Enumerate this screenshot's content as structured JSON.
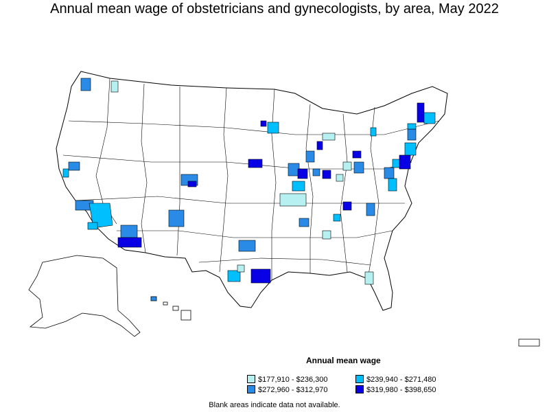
{
  "title": "Annual mean wage of obstetricians and gynecologists, by area, May 2022",
  "legend": {
    "title": "Annual mean wage",
    "items": [
      {
        "label": "$177,910 - $236,300",
        "color": "#b7f0f0"
      },
      {
        "label": "$239,940 - $271,480",
        "color": "#00bfff"
      },
      {
        "label": "$272,960 - $312,970",
        "color": "#2a8be6"
      },
      {
        "label": "$319,980 - $398,650",
        "color": "#0a00e6"
      }
    ]
  },
  "footnote": "Blank areas indicate data not available."
}
